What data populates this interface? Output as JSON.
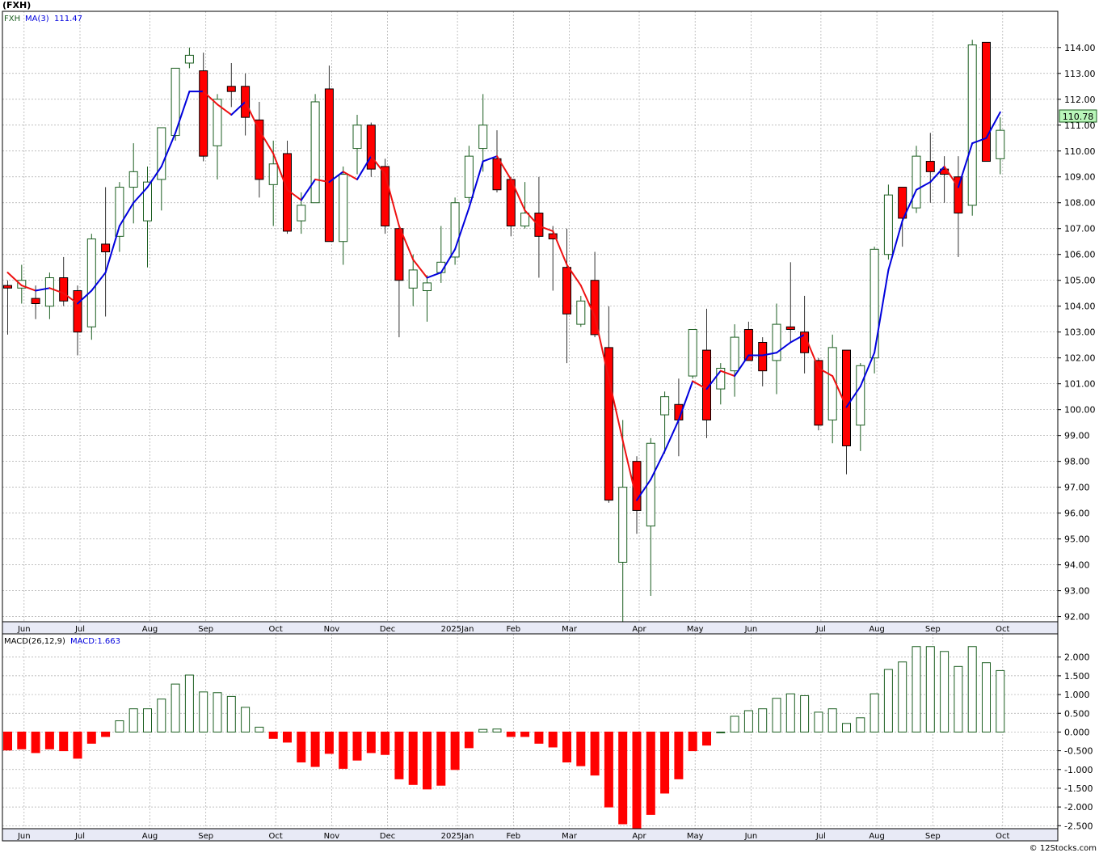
{
  "header": {
    "symbol": "(FXH)"
  },
  "legend": {
    "ticker": "FXH",
    "ma_label": "MA(3)",
    "ma_value": "111.47"
  },
  "macd_legend": {
    "label": "MACD(26,12,9)",
    "value_label": "MACD:1.663"
  },
  "last_price_label": "110.78",
  "footer": {
    "credit": "© 12Stocks.com"
  },
  "colors": {
    "up": "#1b5e20",
    "down": "#ff0000",
    "ma_up": "#0000dd",
    "ma_down": "#ee1111",
    "grid": "#aaaaaa",
    "last_price_bg": "#b9f6b9"
  },
  "chart_data": [
    {
      "type": "candlestick",
      "title": "FXH",
      "interval": "weekly",
      "ylim": [
        91.8,
        115.4
      ],
      "yticks": [
        92,
        93,
        94,
        95,
        96,
        97,
        98,
        99,
        100,
        101,
        102,
        103,
        104,
        105,
        106,
        107,
        108,
        109,
        110,
        111,
        112,
        113,
        114
      ],
      "ytick_labels": [
        "92.00",
        "93.00",
        "94.00",
        "95.00",
        "96.00",
        "97.00",
        "98.00",
        "99.00",
        "100.00",
        "101.00",
        "102.00",
        "103.00",
        "104.00",
        "105.00",
        "106.00",
        "107.00",
        "108.00",
        "109.00",
        "110.00",
        "111.00",
        "112.00",
        "113.00",
        "114.00"
      ],
      "x_labels": [
        {
          "label": "Jun",
          "index": 1
        },
        {
          "label": "Jul",
          "index": 5
        },
        {
          "label": "Aug",
          "index": 10
        },
        {
          "label": "Sep",
          "index": 14
        },
        {
          "label": "Oct",
          "index": 19
        },
        {
          "label": "Nov",
          "index": 23
        },
        {
          "label": "Dec",
          "index": 27
        },
        {
          "label": "2025Jan",
          "index": 32
        },
        {
          "label": "Feb",
          "index": 36
        },
        {
          "label": "Mar",
          "index": 40
        },
        {
          "label": "Apr",
          "index": 45
        },
        {
          "label": "May",
          "index": 49
        },
        {
          "label": "Jun",
          "index": 53
        },
        {
          "label": "Jul",
          "index": 58
        },
        {
          "label": "Aug",
          "index": 62
        },
        {
          "label": "Sep",
          "index": 66
        },
        {
          "label": "Oct",
          "index": 71
        }
      ],
      "candles": [
        {
          "o": 104.8,
          "h": 105.0,
          "l": 102.9,
          "c": 104.7
        },
        {
          "o": 104.7,
          "h": 105.6,
          "l": 104.1,
          "c": 105.0
        },
        {
          "o": 104.3,
          "h": 104.8,
          "l": 103.5,
          "c": 104.1
        },
        {
          "o": 104.0,
          "h": 105.3,
          "l": 103.5,
          "c": 105.1
        },
        {
          "o": 105.1,
          "h": 105.9,
          "l": 104.0,
          "c": 104.2
        },
        {
          "o": 104.6,
          "h": 104.8,
          "l": 102.1,
          "c": 103.0
        },
        {
          "o": 103.2,
          "h": 106.8,
          "l": 102.7,
          "c": 106.6
        },
        {
          "o": 106.4,
          "h": 108.6,
          "l": 103.6,
          "c": 106.1
        },
        {
          "o": 106.7,
          "h": 108.8,
          "l": 106.1,
          "c": 108.6
        },
        {
          "o": 108.6,
          "h": 110.3,
          "l": 107.2,
          "c": 109.2
        },
        {
          "o": 107.3,
          "h": 109.4,
          "l": 105.5,
          "c": 108.8
        },
        {
          "o": 108.9,
          "h": 110.9,
          "l": 107.7,
          "c": 110.9
        },
        {
          "o": 110.6,
          "h": 113.2,
          "l": 110.4,
          "c": 113.2
        },
        {
          "o": 113.4,
          "h": 114.0,
          "l": 113.2,
          "c": 113.7
        },
        {
          "o": 113.1,
          "h": 113.8,
          "l": 109.6,
          "c": 109.8
        },
        {
          "o": 110.2,
          "h": 112.2,
          "l": 108.9,
          "c": 112.0
        },
        {
          "o": 112.5,
          "h": 113.4,
          "l": 111.7,
          "c": 112.3
        },
        {
          "o": 112.5,
          "h": 113.0,
          "l": 110.6,
          "c": 111.3
        },
        {
          "o": 111.2,
          "h": 111.9,
          "l": 108.2,
          "c": 108.9
        },
        {
          "o": 108.7,
          "h": 110.4,
          "l": 107.1,
          "c": 109.5
        },
        {
          "o": 109.9,
          "h": 110.4,
          "l": 106.8,
          "c": 106.9
        },
        {
          "o": 107.3,
          "h": 108.4,
          "l": 106.8,
          "c": 107.9
        },
        {
          "o": 108.0,
          "h": 112.2,
          "l": 108.0,
          "c": 111.9
        },
        {
          "o": 112.4,
          "h": 113.3,
          "l": 106.5,
          "c": 106.5
        },
        {
          "o": 106.5,
          "h": 109.4,
          "l": 105.6,
          "c": 109.1
        },
        {
          "o": 110.1,
          "h": 111.4,
          "l": 109.1,
          "c": 111.0
        },
        {
          "o": 111.0,
          "h": 111.1,
          "l": 109.0,
          "c": 109.3
        },
        {
          "o": 109.4,
          "h": 109.7,
          "l": 106.8,
          "c": 107.1
        },
        {
          "o": 107.0,
          "h": 107.1,
          "l": 102.8,
          "c": 105.0
        },
        {
          "o": 104.7,
          "h": 106.0,
          "l": 104.0,
          "c": 105.4
        },
        {
          "o": 104.6,
          "h": 105.2,
          "l": 103.4,
          "c": 104.9
        },
        {
          "o": 105.3,
          "h": 107.1,
          "l": 104.9,
          "c": 105.7
        },
        {
          "o": 105.9,
          "h": 108.2,
          "l": 105.6,
          "c": 108.0
        },
        {
          "o": 108.2,
          "h": 110.2,
          "l": 108.0,
          "c": 109.8
        },
        {
          "o": 110.1,
          "h": 112.2,
          "l": 109.2,
          "c": 111.0
        },
        {
          "o": 109.7,
          "h": 110.8,
          "l": 108.4,
          "c": 108.5
        },
        {
          "o": 108.9,
          "h": 109.0,
          "l": 106.7,
          "c": 107.1
        },
        {
          "o": 107.1,
          "h": 108.8,
          "l": 107.0,
          "c": 107.6
        },
        {
          "o": 107.6,
          "h": 109.0,
          "l": 105.1,
          "c": 106.7
        },
        {
          "o": 106.8,
          "h": 107.1,
          "l": 104.6,
          "c": 106.6
        },
        {
          "o": 105.5,
          "h": 107.0,
          "l": 101.8,
          "c": 103.7
        },
        {
          "o": 103.3,
          "h": 104.4,
          "l": 103.2,
          "c": 104.2
        },
        {
          "o": 105.0,
          "h": 106.1,
          "l": 102.8,
          "c": 102.9
        },
        {
          "o": 102.4,
          "h": 104.0,
          "l": 96.4,
          "c": 96.5
        },
        {
          "o": 94.1,
          "h": 99.6,
          "l": 91.8,
          "c": 97.0
        },
        {
          "o": 98.0,
          "h": 98.2,
          "l": 95.2,
          "c": 96.1
        },
        {
          "o": 95.5,
          "h": 98.9,
          "l": 92.8,
          "c": 98.7
        },
        {
          "o": 99.8,
          "h": 100.7,
          "l": 98.3,
          "c": 100.5
        },
        {
          "o": 100.2,
          "h": 101.2,
          "l": 98.2,
          "c": 99.6
        },
        {
          "o": 101.3,
          "h": 103.1,
          "l": 101.2,
          "c": 103.1
        },
        {
          "o": 102.3,
          "h": 103.9,
          "l": 98.9,
          "c": 99.6
        },
        {
          "o": 100.8,
          "h": 101.8,
          "l": 100.2,
          "c": 101.6
        },
        {
          "o": 101.5,
          "h": 103.3,
          "l": 100.5,
          "c": 102.8
        },
        {
          "o": 103.1,
          "h": 103.4,
          "l": 102.0,
          "c": 101.9
        },
        {
          "o": 102.6,
          "h": 102.8,
          "l": 100.9,
          "c": 101.5
        },
        {
          "o": 101.9,
          "h": 104.1,
          "l": 100.6,
          "c": 103.3
        },
        {
          "o": 103.2,
          "h": 105.7,
          "l": 102.6,
          "c": 103.1
        },
        {
          "o": 103.0,
          "h": 104.4,
          "l": 101.4,
          "c": 102.2
        },
        {
          "o": 101.9,
          "h": 102.0,
          "l": 99.2,
          "c": 99.4
        },
        {
          "o": 99.6,
          "h": 102.9,
          "l": 98.7,
          "c": 102.4
        },
        {
          "o": 102.3,
          "h": 102.3,
          "l": 97.5,
          "c": 98.6
        },
        {
          "o": 99.4,
          "h": 101.8,
          "l": 98.4,
          "c": 101.7
        },
        {
          "o": 102.0,
          "h": 106.3,
          "l": 101.4,
          "c": 106.2
        },
        {
          "o": 106.0,
          "h": 108.7,
          "l": 105.8,
          "c": 108.3
        },
        {
          "o": 108.6,
          "h": 108.6,
          "l": 106.3,
          "c": 107.4
        },
        {
          "o": 107.8,
          "h": 110.2,
          "l": 107.6,
          "c": 109.8
        },
        {
          "o": 109.6,
          "h": 110.7,
          "l": 108.0,
          "c": 109.2
        },
        {
          "o": 109.3,
          "h": 109.8,
          "l": 108.0,
          "c": 109.1
        },
        {
          "o": 109.0,
          "h": 109.8,
          "l": 105.9,
          "c": 107.6
        },
        {
          "o": 107.9,
          "h": 114.3,
          "l": 107.5,
          "c": 114.1
        },
        {
          "o": 114.2,
          "h": 114.2,
          "l": 109.6,
          "c": 109.6
        },
        {
          "o": 109.7,
          "h": 111.3,
          "l": 109.1,
          "c": 110.8
        }
      ],
      "ma3": [
        105.3,
        104.8,
        104.6,
        104.7,
        104.5,
        104.1,
        104.6,
        105.3,
        107.1,
        108.0,
        108.6,
        109.4,
        110.7,
        112.3,
        112.3,
        111.8,
        111.4,
        111.9,
        110.8,
        109.9,
        108.5,
        108.1,
        108.9,
        108.8,
        109.2,
        108.9,
        109.8,
        109.1,
        107.1,
        105.8,
        105.1,
        105.3,
        106.2,
        107.8,
        109.6,
        109.8,
        108.9,
        107.7,
        107.1,
        106.9,
        105.6,
        104.8,
        103.6,
        101.2,
        98.8,
        96.5,
        97.3,
        98.4,
        99.6,
        101.1,
        100.8,
        101.5,
        101.3,
        102.1,
        102.1,
        102.2,
        102.6,
        102.9,
        101.6,
        101.3,
        100.1,
        100.9,
        102.2,
        105.4,
        107.3,
        108.5,
        108.8,
        109.4,
        108.6,
        110.3,
        110.5,
        111.5
      ]
    },
    {
      "type": "histogram",
      "title": "MACD(26,12,9)",
      "ylim": [
        -2.58,
        2.62
      ],
      "yticks": [
        -2.5,
        -2.0,
        -1.5,
        -1.0,
        -0.5,
        0.0,
        0.5,
        1.0,
        1.5,
        2.0
      ],
      "ytick_labels": [
        "-2.500",
        "-2.000",
        "-1.500",
        "-1.000",
        "-0.500",
        "0.000",
        "0.500",
        "1.000",
        "1.500",
        "2.000"
      ],
      "values": [
        -0.48,
        -0.45,
        -0.55,
        -0.45,
        -0.5,
        -0.7,
        -0.3,
        -0.12,
        0.3,
        0.62,
        0.62,
        0.88,
        1.28,
        1.52,
        1.07,
        1.05,
        0.95,
        0.66,
        0.13,
        -0.17,
        -0.27,
        -0.8,
        -0.92,
        -0.57,
        -0.97,
        -0.75,
        -0.55,
        -0.6,
        -1.25,
        -1.4,
        -1.52,
        -1.42,
        -1.0,
        -0.42,
        0.07,
        0.08,
        -0.12,
        -0.12,
        -0.3,
        -0.4,
        -0.8,
        -0.9,
        -1.15,
        -2.0,
        -2.45,
        -2.6,
        -2.2,
        -1.63,
        -1.25,
        -0.5,
        -0.35,
        0.0,
        0.42,
        0.57,
        0.62,
        0.9,
        1.02,
        0.97,
        0.53,
        0.62,
        0.23,
        0.38,
        1.02,
        1.67,
        1.87,
        2.28,
        2.28,
        2.15,
        1.75,
        2.28,
        1.85,
        1.64
      ]
    }
  ]
}
